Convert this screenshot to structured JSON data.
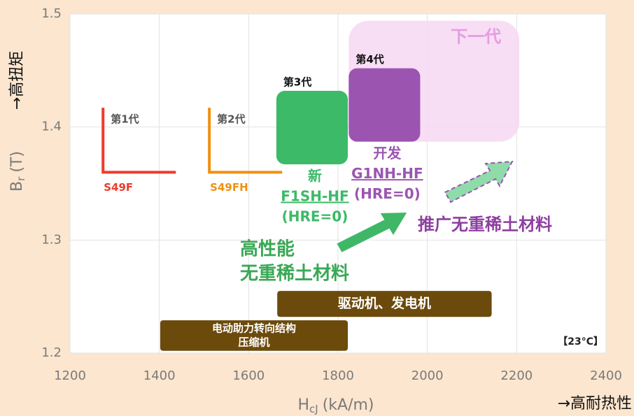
{
  "chart_data": {
    "type": "region",
    "xlim": [
      1200,
      2400
    ],
    "xticks": [
      1200,
      1400,
      1600,
      1800,
      2000,
      2200,
      2400
    ],
    "ylim": [
      1.2,
      1.5
    ],
    "yticks": [
      1.2,
      1.3,
      1.4,
      1.5
    ],
    "grid": true,
    "xlabel": {
      "main": "H",
      "sub": "cJ",
      "unit": "(kA/m)"
    },
    "ylabel": {
      "main": "B",
      "sub": "r",
      "unit": "(T)"
    },
    "x_direction": "→高耐热性",
    "y_direction": "→高扭矩",
    "temperature": "【23°C】",
    "generations": [
      {
        "name": "第1代",
        "product": "S49F",
        "color": "#ef3a2c",
        "x": [
          1274,
          1437
        ],
        "y": [
          1.36,
          1.417
        ]
      },
      {
        "name": "第2代",
        "product": "S49FH",
        "color": "#ef9010",
        "x": [
          1512,
          1675
        ],
        "y": [
          1.36,
          1.417
        ]
      }
    ],
    "regions": [
      {
        "name": "下一代",
        "color": "#f6d8f2",
        "x": [
          1824,
          2206
        ],
        "y": [
          1.387,
          1.494
        ]
      },
      {
        "name": "第3代",
        "labels": [
          "新",
          "F1SH-HF",
          "(HRE=0)"
        ],
        "color": "#3cba68",
        "x": [
          1662,
          1822
        ],
        "y": [
          1.367,
          1.432
        ]
      },
      {
        "name": "第4代",
        "labels": [
          "开发",
          "G1NH-HF",
          "(HRE=0)"
        ],
        "color": "#9b55b1",
        "x": [
          1824,
          1984
        ],
        "y": [
          1.387,
          1.452
        ]
      }
    ],
    "applications": [
      {
        "labels": [
          "驱动机、发电机"
        ],
        "color": "#6b4a0c",
        "x": [
          1664,
          2144
        ],
        "y": [
          1.232,
          1.255
        ]
      },
      {
        "labels": [
          "电动助力转向结构",
          "压缩机"
        ],
        "color": "#6b4a0c",
        "x": [
          1402,
          1822
        ],
        "y": [
          1.202,
          1.229
        ]
      }
    ],
    "annotations": [
      {
        "text": [
          "高性能",
          "无重稀土材料"
        ],
        "color": "#3aa855"
      },
      {
        "text": [
          "推广无重稀土材料"
        ],
        "color": "#8e3fa0"
      }
    ]
  }
}
